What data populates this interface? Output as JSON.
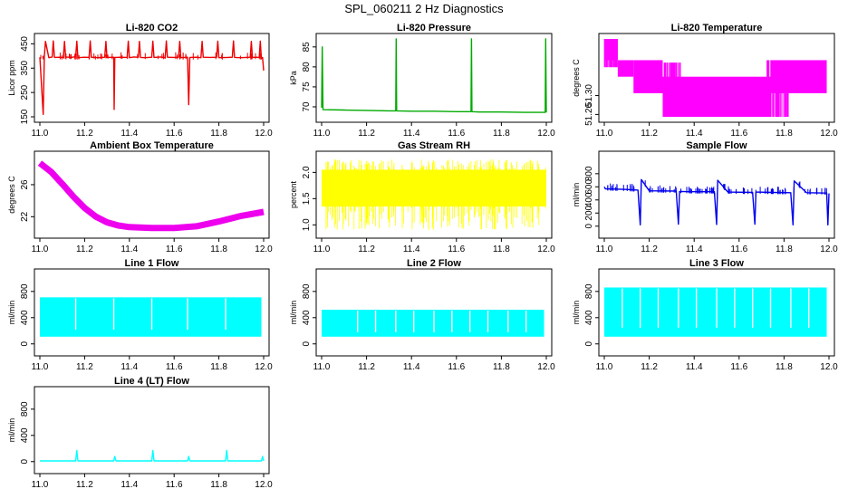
{
  "figure": {
    "title": "SPL_060211  2 Hz Diagnostics"
  },
  "chart_data": [
    {
      "type": "line",
      "title": "Li-820 CO2",
      "xlabel": "",
      "ylabel": "Licor ppm",
      "color": "#ee0000",
      "xlim": [
        11.0,
        12.0
      ],
      "ylim": [
        150,
        470
      ],
      "x_ticks": [
        11.0,
        11.2,
        11.4,
        11.6,
        11.8,
        12.0
      ],
      "x_tick_labels": [
        "11.0",
        "11.2",
        "11.4",
        "11.6",
        "11.8",
        "12.0"
      ],
      "y_ticks": [
        150,
        250,
        350,
        450
      ],
      "y_tick_labels": [
        "150",
        "250",
        "350",
        "450"
      ],
      "series": [
        {
          "name": "CO2",
          "style": "line",
          "x": [
            11.0,
            11.015,
            11.02,
            11.025,
            11.04,
            11.055,
            11.06,
            11.065,
            11.09,
            11.105,
            11.11,
            11.115,
            11.14,
            11.16,
            11.165,
            11.17,
            11.2,
            11.22,
            11.225,
            11.23,
            11.26,
            11.29,
            11.295,
            11.3,
            11.33,
            11.332,
            11.335,
            11.36,
            11.39,
            11.395,
            11.4,
            11.42,
            11.44,
            11.445,
            11.45,
            11.47,
            11.5,
            11.505,
            11.51,
            11.54,
            11.56,
            11.565,
            11.57,
            11.6,
            11.62,
            11.625,
            11.63,
            11.66,
            11.665,
            11.67,
            11.7,
            11.72,
            11.725,
            11.73,
            11.76,
            11.79,
            11.795,
            11.8,
            11.84,
            11.86,
            11.865,
            11.87,
            11.9,
            11.94,
            11.945,
            11.95,
            11.97,
            11.98,
            11.985,
            11.99,
            11.995,
            12.0
          ],
          "y": [
            395,
            160,
            395,
            460,
            393,
            396,
            462,
            394,
            395,
            393,
            460,
            396,
            394,
            397,
            461,
            393,
            395,
            394,
            462,
            395,
            393,
            395,
            460,
            394,
            395,
            180,
            394,
            395,
            394,
            461,
            393,
            396,
            395,
            460,
            394,
            393,
            395,
            461,
            394,
            396,
            393,
            462,
            395,
            394,
            395,
            460,
            393,
            395,
            200,
            394,
            395,
            393,
            460,
            395,
            394,
            395,
            461,
            393,
            394,
            395,
            462,
            394,
            393,
            395,
            460,
            394,
            395,
            393,
            461,
            390,
            394,
            340
          ]
        }
      ]
    },
    {
      "type": "line",
      "title": "Li-820 Pressure",
      "xlabel": "",
      "ylabel": "kPa",
      "color": "#00aa00",
      "xlim": [
        11.0,
        12.0
      ],
      "ylim": [
        67.5,
        87
      ],
      "x_ticks": [
        11.0,
        11.2,
        11.4,
        11.6,
        11.8,
        12.0
      ],
      "x_tick_labels": [
        "11.0",
        "11.2",
        "11.4",
        "11.6",
        "11.8",
        "12.0"
      ],
      "y_ticks": [
        70,
        75,
        80,
        85
      ],
      "y_tick_labels": [
        "70",
        "75",
        "80",
        "85"
      ],
      "series": [
        {
          "name": "Pressure",
          "style": "line",
          "x": [
            11.0,
            11.003,
            11.006,
            11.1,
            11.2,
            11.3,
            11.33,
            11.332,
            11.334,
            11.4,
            11.5,
            11.6,
            11.665,
            11.667,
            11.669,
            11.7,
            11.8,
            11.9,
            11.995,
            11.997,
            12.0
          ],
          "y": [
            69.8,
            85.0,
            69.3,
            69.2,
            69.1,
            69.0,
            69.0,
            87.0,
            69.0,
            68.9,
            68.9,
            68.8,
            68.8,
            87.0,
            68.8,
            68.7,
            68.7,
            68.6,
            68.6,
            87.0,
            68.6
          ]
        }
      ]
    },
    {
      "type": "line",
      "title": "Li-820 Temperature",
      "xlabel": "",
      "ylabel": "degrees C",
      "color": "#ff00ff",
      "xlim": [
        11.0,
        12.0
      ],
      "ylim": [
        51.255,
        51.42
      ],
      "x_ticks": [
        11.0,
        11.2,
        11.4,
        11.6,
        11.8,
        12.0
      ],
      "x_tick_labels": [
        "11.0",
        "11.2",
        "11.4",
        "11.6",
        "11.8",
        "12.0"
      ],
      "y_ticks": [
        51.26,
        51.3
      ],
      "y_tick_labels": [
        "51.26",
        "51.30"
      ],
      "series": [
        {
          "name": "level_51.40",
          "style": "band",
          "x": [
            11.0,
            11.06
          ],
          "y_low": 51.375,
          "y_high": 51.42
        },
        {
          "name": "level_51.36",
          "style": "band",
          "x": [
            11.06,
            11.13
          ],
          "y_low": 51.34,
          "y_high": 51.375
        },
        {
          "name": "level_51.33",
          "style": "band",
          "x": [
            11.13,
            11.26
          ],
          "y_low": 51.305,
          "y_high": 51.375
        },
        {
          "name": "level_51.29",
          "style": "band",
          "x": [
            11.26,
            11.74
          ],
          "y_low": 51.255,
          "y_high": 51.34
        },
        {
          "name": "level_51.31",
          "style": "band",
          "x": [
            11.74,
            11.99
          ],
          "y_low": 51.305,
          "y_high": 51.375
        }
      ]
    },
    {
      "type": "line",
      "title": "Ambient Box Temperature",
      "xlabel": "",
      "ylabel": "degrees C",
      "color": "#ee00ee",
      "xlim": [
        11.0,
        12.0
      ],
      "ylim": [
        20,
        29.5
      ],
      "x_ticks": [
        11.0,
        11.2,
        11.4,
        11.6,
        11.8,
        12.0
      ],
      "x_tick_labels": [
        "11.0",
        "11.2",
        "11.4",
        "11.6",
        "11.8",
        "12.0"
      ],
      "y_ticks": [
        22,
        26
      ],
      "y_tick_labels": [
        "22",
        "26"
      ],
      "series": [
        {
          "name": "Box temp",
          "style": "thick",
          "x": [
            11.0,
            11.05,
            11.1,
            11.15,
            11.2,
            11.25,
            11.3,
            11.35,
            11.4,
            11.5,
            11.6,
            11.7,
            11.8,
            11.9,
            12.0
          ],
          "y": [
            28.7,
            27.6,
            26.1,
            24.5,
            23.1,
            22.0,
            21.3,
            20.9,
            20.7,
            20.6,
            20.6,
            20.8,
            21.4,
            22.1,
            22.6
          ]
        }
      ]
    },
    {
      "type": "line",
      "title": "Gas Stream RH",
      "xlabel": "",
      "ylabel": "percent",
      "color": "#ffff00",
      "xlim": [
        11.0,
        12.0
      ],
      "ylim": [
        0.85,
        2.3
      ],
      "x_ticks": [
        11.0,
        11.2,
        11.4,
        11.6,
        11.8,
        12.0
      ],
      "x_tick_labels": [
        "11.0",
        "11.2",
        "11.4",
        "11.6",
        "11.8",
        "12.0"
      ],
      "y_ticks": [
        1.0,
        1.5,
        2.0
      ],
      "y_tick_labels": [
        "1.0",
        "1.5",
        "2.0"
      ],
      "series": [
        {
          "name": "RH",
          "style": "band",
          "x": [
            11.0,
            12.0
          ],
          "y_low": 1.35,
          "y_high": 2.05,
          "spike_min": 0.9,
          "spike_max": 2.25
        }
      ]
    },
    {
      "type": "line",
      "title": "Sample Flow",
      "xlabel": "",
      "ylabel": "ml/min",
      "color": "#0000ee",
      "xlim": [
        11.0,
        12.0
      ],
      "ylim": [
        -100,
        1060
      ],
      "x_ticks": [
        11.0,
        11.2,
        11.4,
        11.6,
        11.8,
        12.0
      ],
      "x_tick_labels": [
        "11.0",
        "11.2",
        "11.4",
        "11.6",
        "11.8",
        "12.0"
      ],
      "y_ticks": [
        0,
        200,
        400,
        600,
        800
      ],
      "y_tick_labels": [
        "0",
        "200",
        "400",
        "600",
        "800"
      ],
      "series": [
        {
          "name": "Sample flow",
          "style": "line",
          "x": [
            11.0,
            11.005,
            11.1,
            11.15,
            11.16,
            11.165,
            11.2,
            11.32,
            11.33,
            11.335,
            11.4,
            11.49,
            11.5,
            11.505,
            11.55,
            11.66,
            11.67,
            11.675,
            11.75,
            11.83,
            11.84,
            11.845,
            11.9,
            11.99,
            11.995,
            12.0
          ],
          "y": [
            600,
            570,
            560,
            550,
            20,
            710,
            540,
            535,
            30,
            530,
            525,
            525,
            25,
            700,
            520,
            515,
            30,
            520,
            515,
            510,
            20,
            690,
            510,
            505,
            20,
            500
          ]
        }
      ]
    },
    {
      "type": "line",
      "title": "Line 1 Flow",
      "xlabel": "",
      "ylabel": "ml/min",
      "color": "#00ffff",
      "xlim": [
        11.0,
        12.0
      ],
      "ylim": [
        -100,
        1060
      ],
      "x_ticks": [
        11.0,
        11.2,
        11.4,
        11.6,
        11.8,
        12.0
      ],
      "x_tick_labels": [
        "11.0",
        "11.2",
        "11.4",
        "11.6",
        "11.8",
        "12.0"
      ],
      "y_ticks": [
        0,
        400,
        800
      ],
      "y_tick_labels": [
        "0",
        "400",
        "800"
      ],
      "series": [
        {
          "name": "Line 1",
          "style": "band",
          "x": [
            11.0,
            11.99
          ],
          "y_low": 110,
          "y_high": 710,
          "gaps": [
            11.16,
            11.33,
            11.5,
            11.66,
            11.83
          ]
        }
      ]
    },
    {
      "type": "line",
      "title": "Line 2 Flow",
      "xlabel": "",
      "ylabel": "ml/min",
      "color": "#00ffff",
      "xlim": [
        11.0,
        12.0
      ],
      "ylim": [
        -100,
        1060
      ],
      "x_ticks": [
        11.0,
        11.2,
        11.4,
        11.6,
        11.8,
        12.0
      ],
      "x_tick_labels": [
        "11.0",
        "11.2",
        "11.4",
        "11.6",
        "11.8",
        "12.0"
      ],
      "y_ticks": [
        0,
        400,
        800
      ],
      "y_tick_labels": [
        "0",
        "400",
        "800"
      ],
      "series": [
        {
          "name": "Line 2",
          "style": "band",
          "x": [
            11.0,
            11.99
          ],
          "y_low": 110,
          "y_high": 520,
          "gaps": [
            11.16,
            11.24,
            11.33,
            11.41,
            11.5,
            11.58,
            11.66,
            11.74,
            11.83,
            11.91
          ]
        }
      ]
    },
    {
      "type": "line",
      "title": "Line 3 Flow",
      "xlabel": "",
      "ylabel": "ml/min",
      "color": "#00ffff",
      "xlim": [
        11.0,
        12.0
      ],
      "ylim": [
        -100,
        1060
      ],
      "x_ticks": [
        11.0,
        11.2,
        11.4,
        11.6,
        11.8,
        12.0
      ],
      "x_tick_labels": [
        "11.0",
        "11.2",
        "11.4",
        "11.6",
        "11.8",
        "12.0"
      ],
      "y_ticks": [
        0,
        400,
        800
      ],
      "y_tick_labels": [
        "0",
        "400",
        "800"
      ],
      "series": [
        {
          "name": "Line 3",
          "style": "band",
          "x": [
            11.0,
            11.99
          ],
          "y_low": 110,
          "y_high": 860,
          "gaps": [
            11.08,
            11.16,
            11.24,
            11.33,
            11.41,
            11.5,
            11.58,
            11.66,
            11.74,
            11.83,
            11.91
          ]
        }
      ]
    },
    {
      "type": "line",
      "title": "Line 4 (LT) Flow",
      "xlabel": "",
      "ylabel": "ml/min",
      "color": "#00ffff",
      "xlim": [
        11.0,
        12.0
      ],
      "ylim": [
        -100,
        1060
      ],
      "x_ticks": [
        11.0,
        11.2,
        11.4,
        11.6,
        11.8,
        12.0
      ],
      "x_tick_labels": [
        "11.0",
        "11.2",
        "11.4",
        "11.6",
        "11.8",
        "12.0"
      ],
      "y_ticks": [
        0,
        400,
        800
      ],
      "y_tick_labels": [
        "0",
        "400",
        "800"
      ],
      "series": [
        {
          "name": "Line 4",
          "style": "line",
          "x": [
            11.0,
            11.16,
            11.165,
            11.17,
            11.33,
            11.335,
            11.34,
            11.5,
            11.505,
            11.51,
            11.66,
            11.665,
            11.67,
            11.83,
            11.835,
            11.84,
            11.99,
            11.995,
            12.0
          ],
          "y": [
            10,
            10,
            170,
            10,
            10,
            80,
            10,
            10,
            170,
            10,
            10,
            80,
            10,
            10,
            170,
            10,
            10,
            80,
            10
          ]
        }
      ]
    }
  ]
}
